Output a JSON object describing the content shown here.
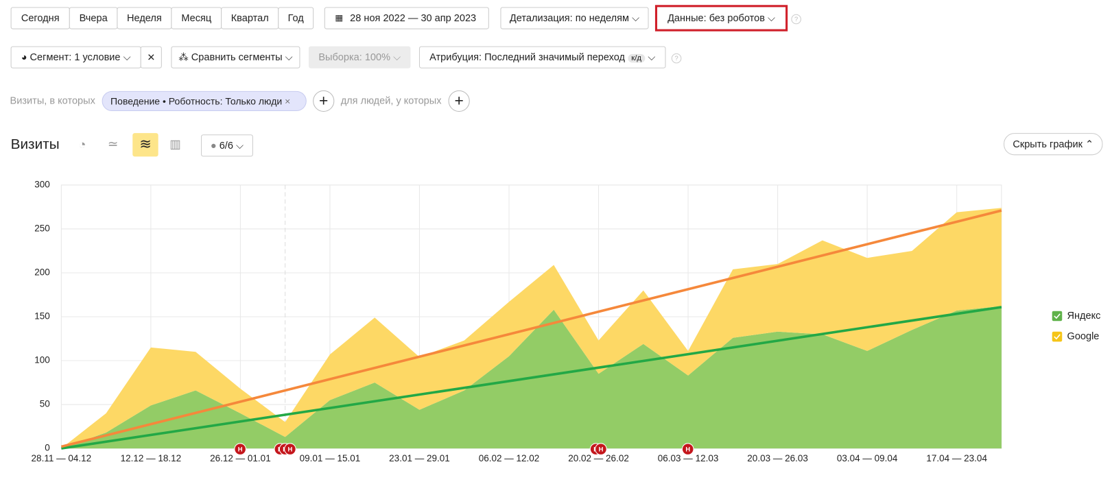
{
  "toolbar": {
    "periods": [
      "Сегодня",
      "Вчера",
      "Неделя",
      "Месяц",
      "Квартал",
      "Год"
    ],
    "date_range": "28 ноя 2022 — 30 апр 2023",
    "detail": "Детализация: по неделям",
    "data_filter": "Данные: без роботов",
    "segment": "Сегмент: 1 условие",
    "compare": "Сравнить сегменты",
    "sample": "Выборка: 100%",
    "attribution": "Атрибуция: Последний значимый переход",
    "attribution_badge": "к/д",
    "filter_prefix": "Визиты, в которых",
    "filter_chip": "Поведение • Роботность: Только люди",
    "filter_suffix": "для людей, у которых",
    "comments": "6/6",
    "hide_chart": "Скрыть график",
    "event_marker": "Н"
  },
  "chart_data": {
    "type": "stacked_area",
    "title": "Визиты",
    "categories": [
      "28.11 — 04.12",
      null,
      "12.12 — 18.12",
      null,
      "26.12 — 01.01",
      null,
      "09.01 — 15.01",
      null,
      "23.01 — 29.01",
      null,
      "06.02 — 12.02",
      null,
      "20.02 — 26.02",
      null,
      "06.03 — 12.03",
      null,
      "20.03 — 26.03",
      null,
      "03.04 — 09.04",
      null,
      "17.04 — 23.04",
      null
    ],
    "series": [
      {
        "name": "Яндекс",
        "color": "#93cc66",
        "values": [
          0,
          18,
          49,
          66,
          40,
          13,
          55,
          75,
          44,
          66,
          105,
          158,
          85,
          119,
          83,
          126,
          133,
          130,
          111,
          135,
          157,
          162
        ]
      },
      {
        "name": "Google",
        "color": "#fdd865",
        "values": [
          0,
          22,
          66,
          44,
          28,
          17,
          52,
          74,
          60,
          57,
          62,
          51,
          38,
          61,
          28,
          78,
          77,
          107,
          106,
          90,
          112,
          112
        ]
      }
    ],
    "trendlines": [
      {
        "color": "#23a846",
        "values": [
          0,
          161
        ]
      },
      {
        "color": "#f5883b",
        "values": [
          2,
          271
        ]
      }
    ],
    "ylim": [
      0,
      300
    ],
    "yticks": [
      0,
      50,
      100,
      150,
      200,
      250,
      300
    ],
    "grid": true,
    "legend": "right"
  }
}
